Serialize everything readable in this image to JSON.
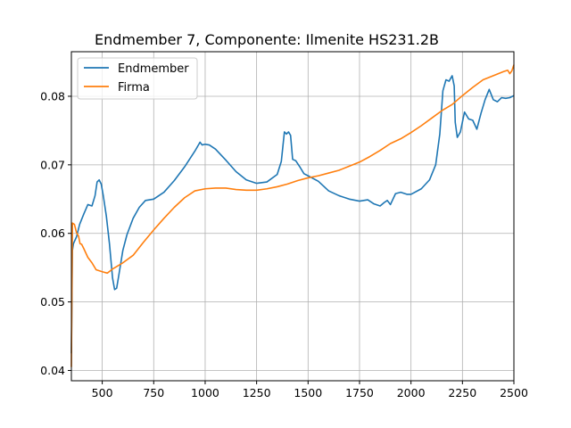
{
  "chart_data": {
    "type": "line",
    "title": "Endmember 7, Componente: Ilmenite HS231.2B",
    "xlabel": "",
    "ylabel": "",
    "xlim": [
      350,
      2500
    ],
    "ylim": [
      0.0385,
      0.0865
    ],
    "xticks": [
      500,
      750,
      1000,
      1250,
      1500,
      1750,
      2000,
      2250,
      2500
    ],
    "yticks": [
      0.04,
      0.05,
      0.06,
      0.07,
      0.08
    ],
    "ytick_labels": [
      "0.04",
      "0.05",
      "0.06",
      "0.07",
      "0.08"
    ],
    "grid": true,
    "legend_position": "top-left",
    "series": [
      {
        "name": "Endmember",
        "color": "#1f77b4",
        "points": [
          [
            350,
            0.0425
          ],
          [
            355,
            0.0575
          ],
          [
            360,
            0.0585
          ],
          [
            375,
            0.0595
          ],
          [
            390,
            0.0613
          ],
          [
            410,
            0.0628
          ],
          [
            430,
            0.0642
          ],
          [
            450,
            0.064
          ],
          [
            465,
            0.0655
          ],
          [
            475,
            0.0675
          ],
          [
            485,
            0.0678
          ],
          [
            495,
            0.0672
          ],
          [
            505,
            0.0655
          ],
          [
            520,
            0.0625
          ],
          [
            535,
            0.0585
          ],
          [
            550,
            0.0535
          ],
          [
            560,
            0.0518
          ],
          [
            570,
            0.052
          ],
          [
            580,
            0.0538
          ],
          [
            600,
            0.0575
          ],
          [
            620,
            0.0598
          ],
          [
            650,
            0.0622
          ],
          [
            680,
            0.0638
          ],
          [
            710,
            0.0648
          ],
          [
            750,
            0.065
          ],
          [
            800,
            0.066
          ],
          [
            850,
            0.0677
          ],
          [
            900,
            0.0697
          ],
          [
            950,
            0.072
          ],
          [
            975,
            0.0733
          ],
          [
            985,
            0.0729
          ],
          [
            1000,
            0.073
          ],
          [
            1020,
            0.0729
          ],
          [
            1050,
            0.0723
          ],
          [
            1100,
            0.0707
          ],
          [
            1150,
            0.069
          ],
          [
            1200,
            0.0678
          ],
          [
            1250,
            0.0673
          ],
          [
            1300,
            0.0675
          ],
          [
            1350,
            0.0686
          ],
          [
            1370,
            0.0705
          ],
          [
            1385,
            0.0748
          ],
          [
            1395,
            0.0745
          ],
          [
            1405,
            0.0748
          ],
          [
            1415,
            0.0743
          ],
          [
            1425,
            0.0708
          ],
          [
            1440,
            0.0706
          ],
          [
            1460,
            0.0697
          ],
          [
            1480,
            0.0687
          ],
          [
            1500,
            0.0684
          ],
          [
            1550,
            0.0676
          ],
          [
            1600,
            0.0662
          ],
          [
            1650,
            0.0655
          ],
          [
            1700,
            0.065
          ],
          [
            1750,
            0.0647
          ],
          [
            1790,
            0.0649
          ],
          [
            1820,
            0.0643
          ],
          [
            1850,
            0.064
          ],
          [
            1870,
            0.0645
          ],
          [
            1885,
            0.0648
          ],
          [
            1900,
            0.0642
          ],
          [
            1925,
            0.0658
          ],
          [
            1950,
            0.066
          ],
          [
            1980,
            0.0657
          ],
          [
            2000,
            0.0657
          ],
          [
            2050,
            0.0665
          ],
          [
            2090,
            0.0678
          ],
          [
            2120,
            0.07
          ],
          [
            2140,
            0.0745
          ],
          [
            2155,
            0.0808
          ],
          [
            2170,
            0.0824
          ],
          [
            2185,
            0.0822
          ],
          [
            2200,
            0.083
          ],
          [
            2210,
            0.0815
          ],
          [
            2215,
            0.0762
          ],
          [
            2225,
            0.074
          ],
          [
            2240,
            0.0748
          ],
          [
            2260,
            0.0777
          ],
          [
            2280,
            0.0767
          ],
          [
            2300,
            0.0765
          ],
          [
            2320,
            0.0752
          ],
          [
            2340,
            0.0775
          ],
          [
            2360,
            0.0795
          ],
          [
            2380,
            0.081
          ],
          [
            2400,
            0.0795
          ],
          [
            2420,
            0.0792
          ],
          [
            2440,
            0.0798
          ],
          [
            2460,
            0.0797
          ],
          [
            2480,
            0.0798
          ],
          [
            2500,
            0.0801
          ]
        ]
      },
      {
        "name": "Firma",
        "color": "#ff7f0e",
        "points": [
          [
            350,
            0.0405
          ],
          [
            355,
            0.0615
          ],
          [
            365,
            0.0613
          ],
          [
            375,
            0.0601
          ],
          [
            385,
            0.0596
          ],
          [
            392,
            0.0585
          ],
          [
            400,
            0.0584
          ],
          [
            410,
            0.0578
          ],
          [
            430,
            0.0565
          ],
          [
            450,
            0.0557
          ],
          [
            470,
            0.0547
          ],
          [
            500,
            0.0544
          ],
          [
            525,
            0.0542
          ],
          [
            550,
            0.0548
          ],
          [
            600,
            0.0557
          ],
          [
            650,
            0.0568
          ],
          [
            700,
            0.0587
          ],
          [
            750,
            0.0605
          ],
          [
            800,
            0.0622
          ],
          [
            850,
            0.0638
          ],
          [
            900,
            0.0652
          ],
          [
            950,
            0.0662
          ],
          [
            1000,
            0.0665
          ],
          [
            1050,
            0.0666
          ],
          [
            1100,
            0.0666
          ],
          [
            1150,
            0.0664
          ],
          [
            1200,
            0.0663
          ],
          [
            1250,
            0.0663
          ],
          [
            1300,
            0.0665
          ],
          [
            1350,
            0.0668
          ],
          [
            1400,
            0.0672
          ],
          [
            1450,
            0.0677
          ],
          [
            1500,
            0.0681
          ],
          [
            1550,
            0.0684
          ],
          [
            1600,
            0.0688
          ],
          [
            1650,
            0.0692
          ],
          [
            1700,
            0.0698
          ],
          [
            1750,
            0.0704
          ],
          [
            1800,
            0.0712
          ],
          [
            1850,
            0.0721
          ],
          [
            1900,
            0.0731
          ],
          [
            1950,
            0.0738
          ],
          [
            2000,
            0.0747
          ],
          [
            2050,
            0.0757
          ],
          [
            2100,
            0.0768
          ],
          [
            2150,
            0.0779
          ],
          [
            2200,
            0.0788
          ],
          [
            2250,
            0.0801
          ],
          [
            2300,
            0.0813
          ],
          [
            2350,
            0.0824
          ],
          [
            2400,
            0.083
          ],
          [
            2450,
            0.0836
          ],
          [
            2470,
            0.0838
          ],
          [
            2480,
            0.0833
          ],
          [
            2490,
            0.0837
          ],
          [
            2500,
            0.0846
          ]
        ]
      }
    ]
  }
}
